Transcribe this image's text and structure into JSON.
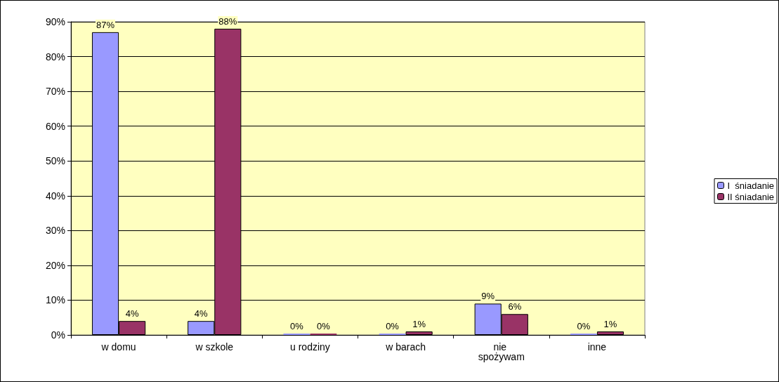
{
  "chart_data": {
    "type": "bar",
    "categories": [
      "w domu",
      "w szkole",
      "u rodziny",
      "w barach",
      "nie spożywam",
      "inne"
    ],
    "series": [
      {
        "name": "I  śniadanie",
        "color": "#9999ff",
        "values": [
          87,
          4,
          0,
          0,
          9,
          0
        ],
        "value_labels": [
          "87%",
          "4%",
          "0%",
          "0%",
          "9%",
          "0%"
        ]
      },
      {
        "name": "II śniadanie",
        "color": "#993366",
        "values": [
          4,
          88,
          0,
          1,
          6,
          1
        ],
        "value_labels": [
          "4%",
          "88%",
          "0%",
          "1%",
          "6%",
          "1%"
        ]
      }
    ],
    "ylim": [
      0,
      90
    ],
    "yticks": [
      {
        "value": 0,
        "label": "0%"
      },
      {
        "value": 10,
        "label": "10%"
      },
      {
        "value": 20,
        "label": "20%"
      },
      {
        "value": 30,
        "label": "30%"
      },
      {
        "value": 40,
        "label": "40%"
      },
      {
        "value": 50,
        "label": "50%"
      },
      {
        "value": 60,
        "label": "60%"
      },
      {
        "value": 70,
        "label": "70%"
      },
      {
        "value": 80,
        "label": "80%"
      },
      {
        "value": 90,
        "label": "90%"
      }
    ],
    "grid": "y",
    "legend": "right"
  }
}
